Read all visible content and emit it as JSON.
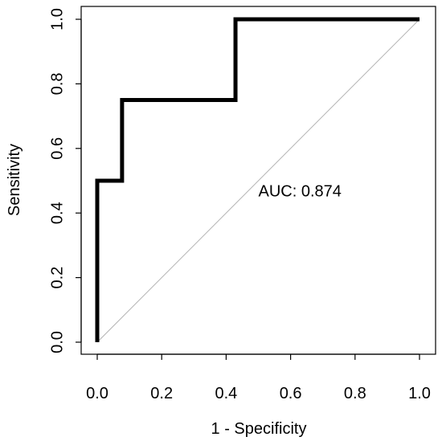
{
  "chart_data": {
    "type": "line",
    "title": "",
    "xlabel": "1 - Specificity",
    "ylabel": "Sensitivity",
    "xlim": [
      0,
      1
    ],
    "ylim": [
      0,
      1
    ],
    "x_ticks": [
      "0.0",
      "0.2",
      "0.4",
      "0.6",
      "0.8",
      "1.0"
    ],
    "y_ticks": [
      "0.0",
      "0.2",
      "0.4",
      "0.6",
      "0.8",
      "1.0"
    ],
    "grid": false,
    "series": [
      {
        "x": [
          0,
          0,
          0.077,
          0.077,
          0.429,
          0.429,
          1.0
        ],
        "y": [
          0,
          0.5,
          0.5,
          0.75,
          0.75,
          1.0,
          1.0
        ],
        "color": "#000000"
      }
    ],
    "reference_line": {
      "x": [
        0,
        1
      ],
      "y": [
        0,
        1
      ],
      "color": "#b3b3b3"
    },
    "annotation": {
      "text": "AUC: 0.874",
      "x": 0.5,
      "y": 0.465
    }
  }
}
